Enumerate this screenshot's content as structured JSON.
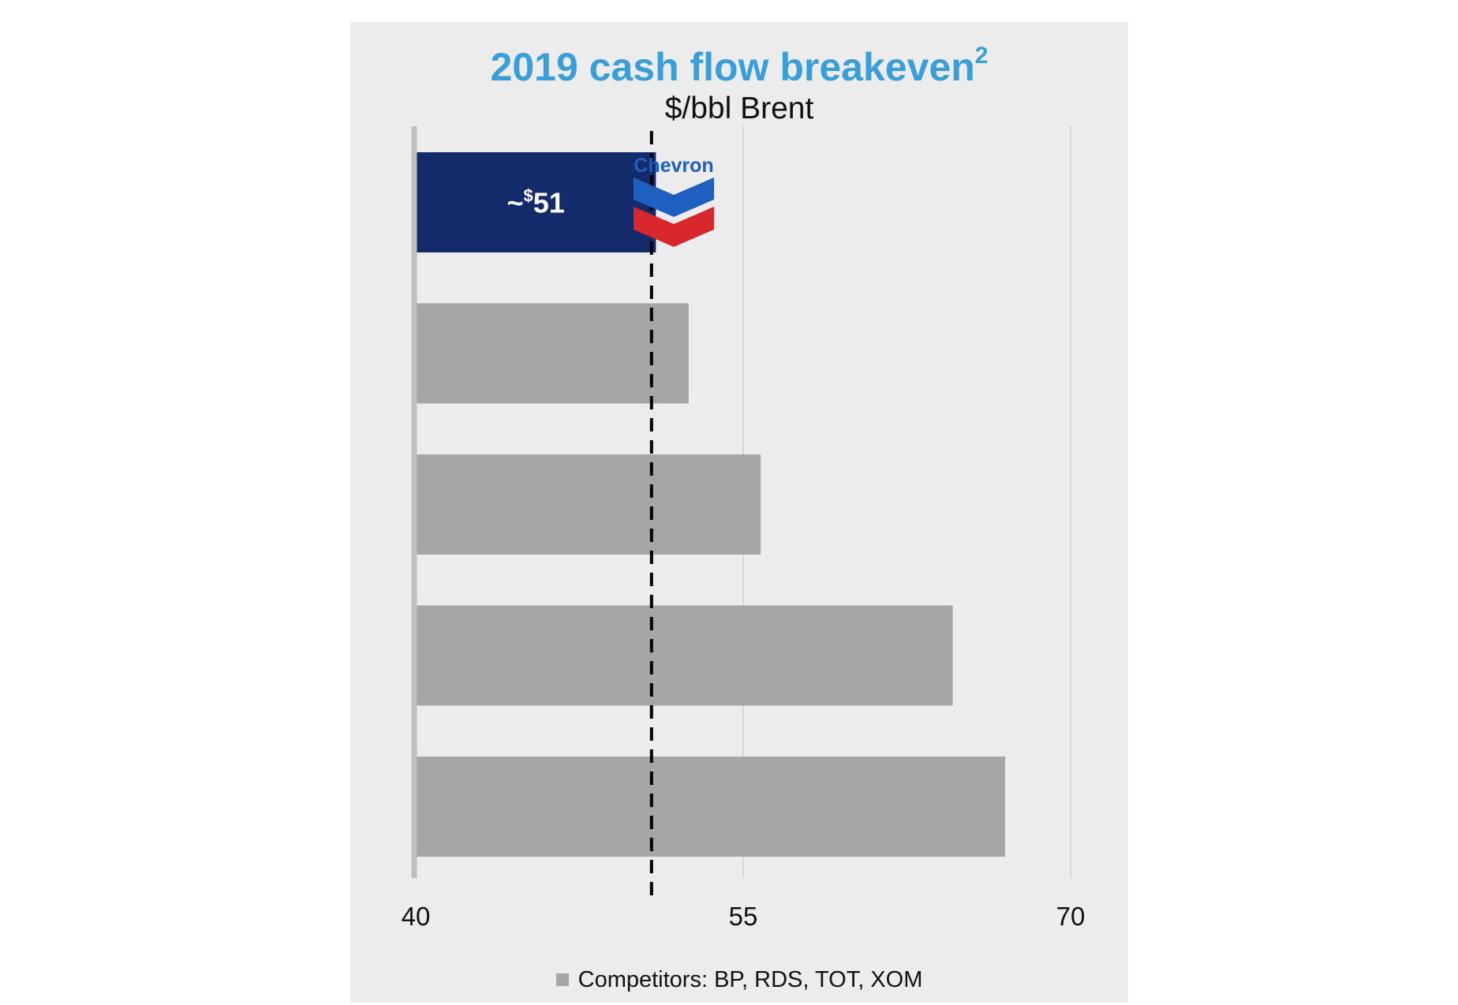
{
  "chart_data": {
    "type": "bar",
    "orientation": "horizontal",
    "title": "2019 cash flow breakeven",
    "title_footnote": "2",
    "subtitle": "$/bbl Brent",
    "categories": [
      "",
      "",
      "",
      "",
      ""
    ],
    "values": [
      51,
      52.5,
      55.8,
      64.6,
      67
    ],
    "bar_colors": [
      "#142b6b",
      "#a6a6a6",
      "#a6a6a6",
      "#a6a6a6",
      "#a6a6a6"
    ],
    "data_labels": [
      {
        "index": 0,
        "prefix": "~",
        "superscript": "$",
        "value": "51"
      }
    ],
    "reference_line": {
      "value": 50.8,
      "style": "dashed",
      "color": "#000000"
    },
    "xlim": [
      40,
      70
    ],
    "xticks": [
      "40",
      "55",
      "70"
    ],
    "grid": true,
    "legend": {
      "placement": "bottom",
      "entries": [
        {
          "label": "Competitors: BP, RDS, TOT, XOM",
          "color": "#a6a6a6"
        }
      ]
    },
    "logo": {
      "brand": "Chevron",
      "text": "Chevron",
      "icon": "chevron-logo-icon"
    }
  },
  "colors": {
    "title": "#3a9fd8",
    "panel": "#ececec",
    "gridline": "#d6d6d6",
    "axis": "#bdbdbd",
    "logo_blue": "#1f5fbf",
    "logo_red": "#d8272d"
  }
}
